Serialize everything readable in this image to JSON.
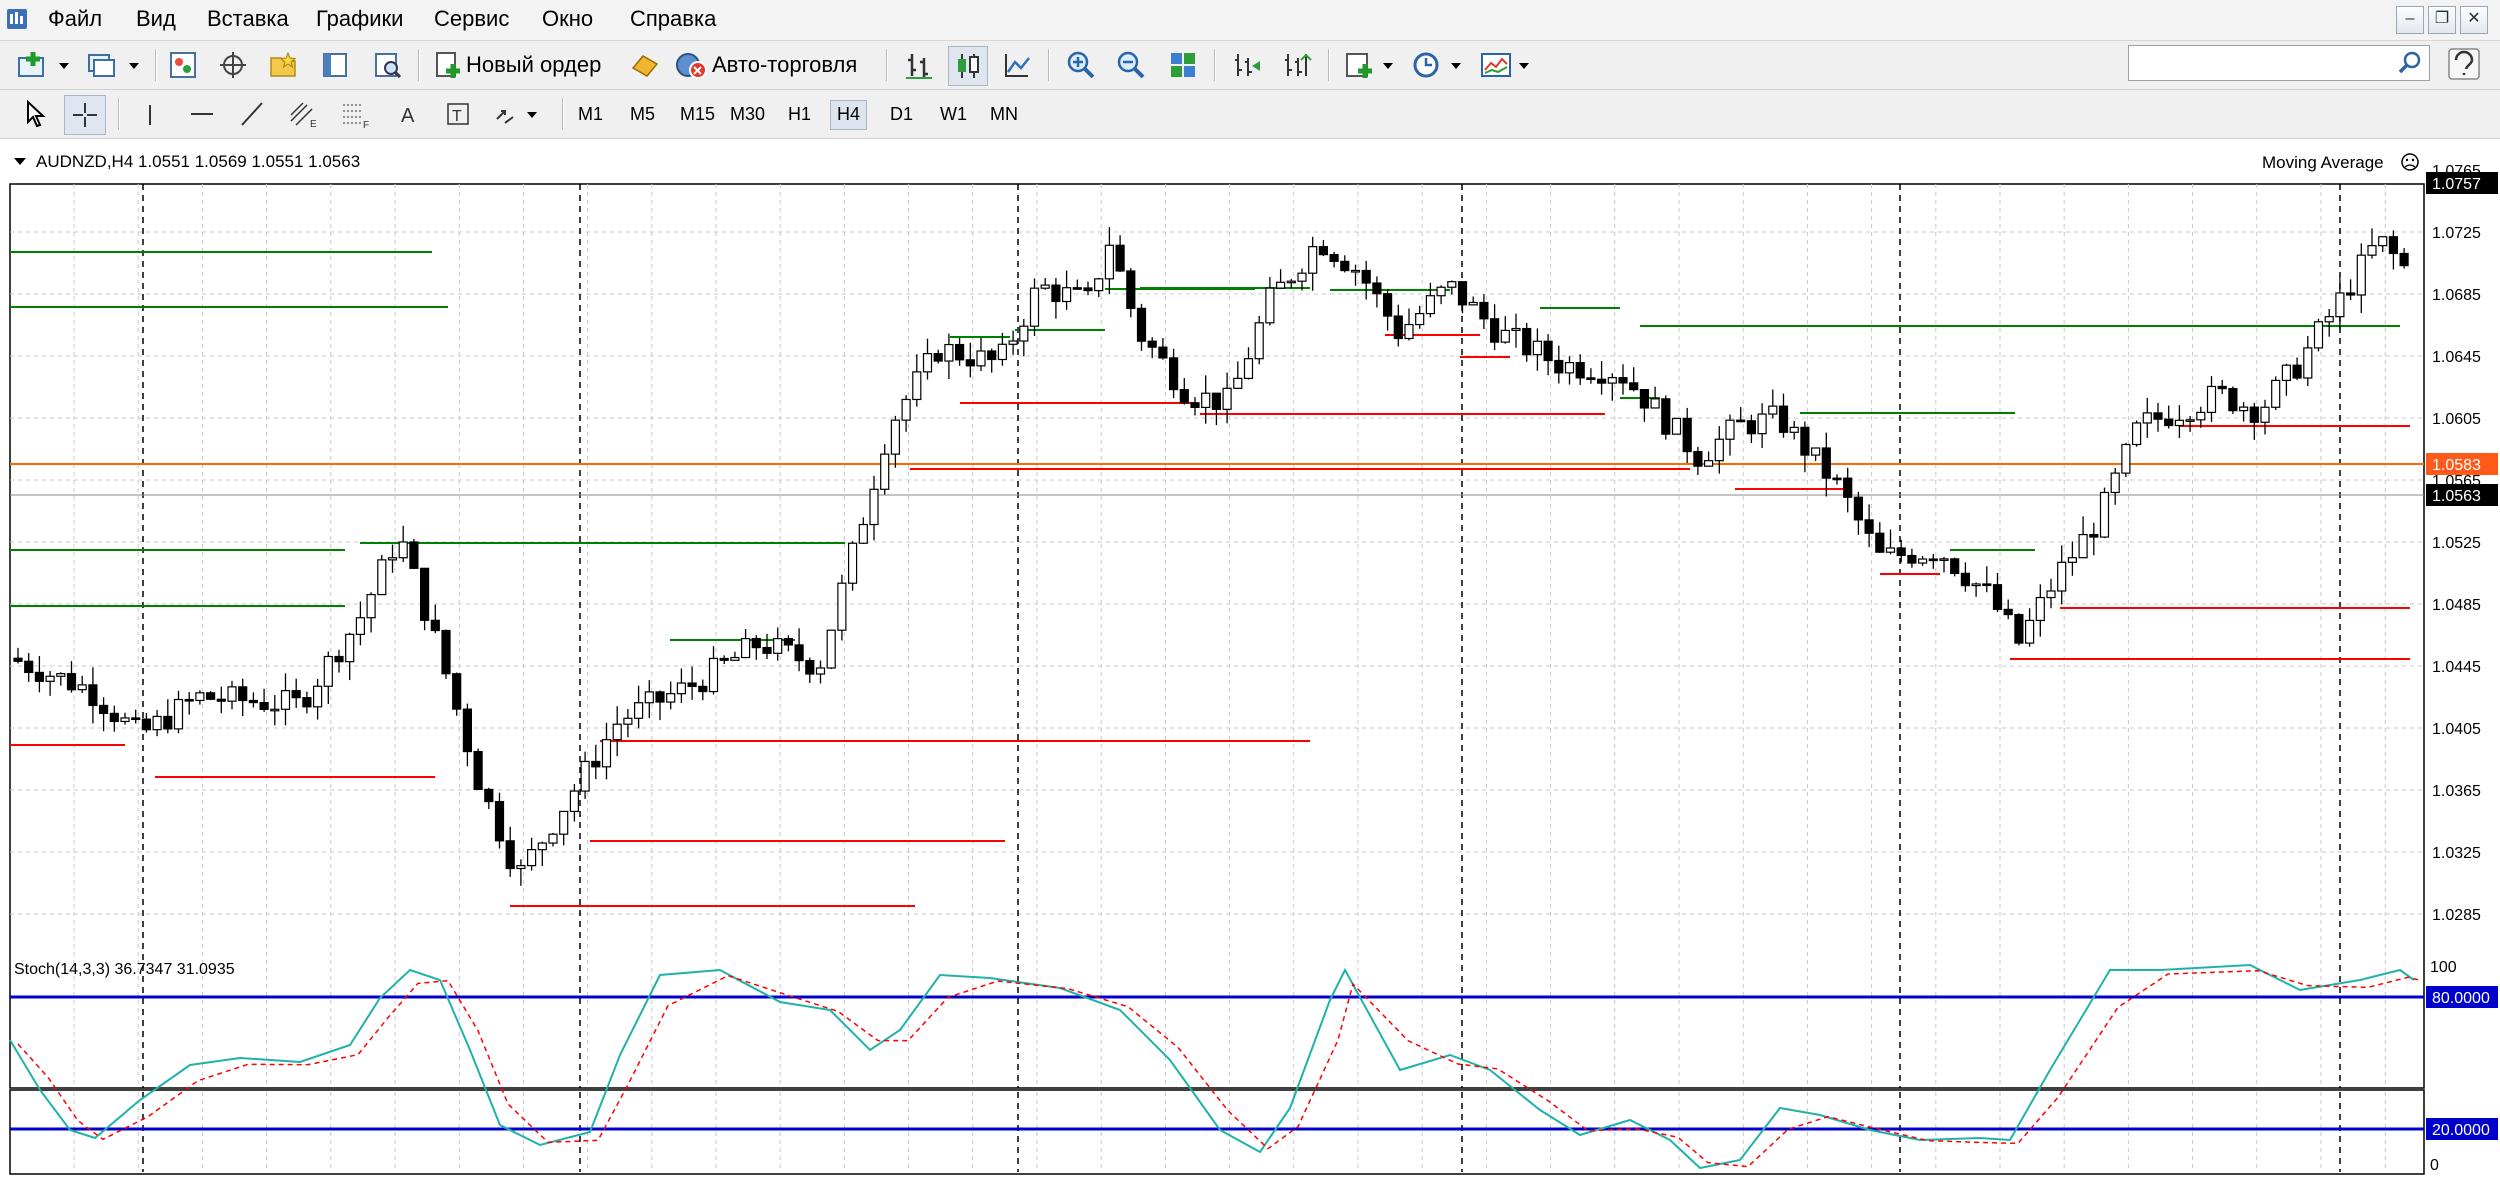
{
  "menu": [
    "Файл",
    "Вид",
    "Вставка",
    "Графики",
    "Сервис",
    "Окно",
    "Справка"
  ],
  "toolbar": {
    "new_order_label": "Новый ордер",
    "autotrading_label": "Авто-торговля"
  },
  "timeframes": [
    "M1",
    "M5",
    "M15",
    "M30",
    "H1",
    "H4",
    "D1",
    "W1",
    "MN"
  ],
  "active_timeframe": "H4",
  "chart": {
    "header": "AUDNZD,H4  1.0551 1.0569 1.0551 1.0563",
    "indicator_label": "Moving Average",
    "price_levels": [
      "1.0765",
      "1.0725",
      "1.0685",
      "1.0645",
      "1.0605",
      "1.0565",
      "1.0525",
      "1.0485",
      "1.0445",
      "1.0405",
      "1.0365",
      "1.0325",
      "1.0285"
    ],
    "badges": [
      {
        "text": "1.0757",
        "bg": "#000000",
        "fg": "#ffffff"
      },
      {
        "text": "1.0583",
        "bg": "#ff5a1a",
        "fg": "#ffffff"
      },
      {
        "text": "1.0563",
        "bg": "#000000",
        "fg": "#ffffff"
      }
    ]
  },
  "stochastic": {
    "label": "Stoch(14,3,3) 36.7347 31.0935",
    "scale_top": "100",
    "scale_bottom": "0",
    "level_high": "80.0000",
    "level_low": "20.0000",
    "main_color": "#20b2aa",
    "signal_color": "#ff0000",
    "level_color": "#0000cc"
  },
  "colors": {
    "support": "#ff0000",
    "resistance": "#008000",
    "pivot": "#ff6a00"
  }
}
